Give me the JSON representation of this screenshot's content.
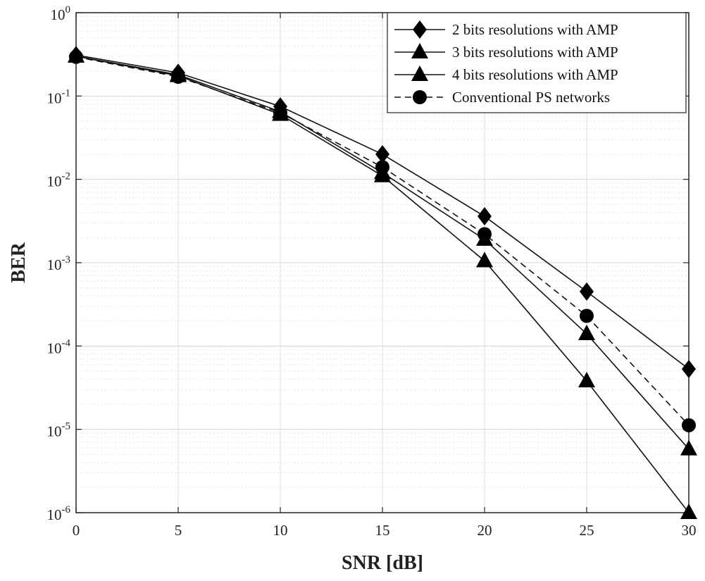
{
  "chart_data": {
    "type": "line",
    "title": "",
    "xlabel": "SNR [dB]",
    "ylabel": "BER",
    "xlim": [
      0,
      30
    ],
    "ylim": [
      1e-06,
      1
    ],
    "yscale": "log",
    "grid": true,
    "legend_position": "top-right",
    "x": [
      0,
      5,
      10,
      15,
      20,
      25,
      30
    ],
    "x_ticks": [
      "0",
      "5",
      "10",
      "15",
      "20",
      "25",
      "30"
    ],
    "y_ticks": [
      {
        "base": "10",
        "exp": "0",
        "value": 1
      },
      {
        "base": "10",
        "exp": "-1",
        "value": 0.1
      },
      {
        "base": "10",
        "exp": "-2",
        "value": 0.01
      },
      {
        "base": "10",
        "exp": "-3",
        "value": 0.001
      },
      {
        "base": "10",
        "exp": "-4",
        "value": 0.0001
      },
      {
        "base": "10",
        "exp": "-5",
        "value": 1e-05
      },
      {
        "base": "10",
        "exp": "-6",
        "value": 1e-06
      }
    ],
    "series": [
      {
        "name": "2 bits resolutions with AMP",
        "marker": "diamond",
        "line": "solid",
        "values": [
          0.31,
          0.19,
          0.075,
          0.02,
          0.0036,
          0.00045,
          5.3e-05
        ]
      },
      {
        "name": "3 bits resolutions with AMP",
        "marker": "triangle",
        "line": "solid",
        "values": [
          0.3,
          0.18,
          0.065,
          0.012,
          0.0019,
          0.00014,
          5.8e-06
        ]
      },
      {
        "name": "4 bits resolutions with AMP",
        "marker": "triangle",
        "line": "solid",
        "values": [
          0.3,
          0.175,
          0.06,
          0.011,
          0.00105,
          3.8e-05,
          1e-06
        ]
      },
      {
        "name": "Conventional PS networks",
        "marker": "circle",
        "line": "dashed",
        "values": [
          0.295,
          0.17,
          0.063,
          0.014,
          0.0022,
          0.00023,
          1.12e-05
        ]
      }
    ]
  }
}
